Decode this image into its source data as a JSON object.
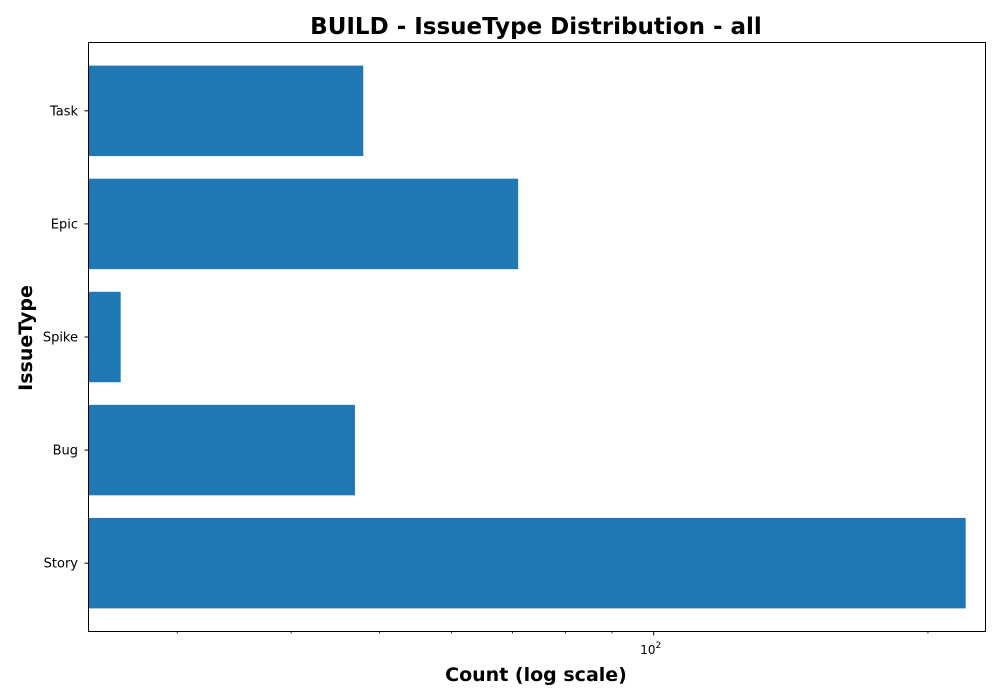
{
  "chart_data": {
    "type": "bar",
    "orientation": "horizontal",
    "title": "BUILD - IssueType Distribution - all",
    "xlabel": "Count (log scale)",
    "ylabel": "IssueType",
    "x_scale": "log",
    "xlim": [
      24,
      231
    ],
    "x_major_ticks": [
      {
        "value": 100,
        "base": "10",
        "exp": "2"
      }
    ],
    "x_minor_ticks": [
      30,
      40,
      50,
      60,
      70,
      80,
      90,
      200
    ],
    "categories": [
      "Story",
      "Bug",
      "Spike",
      "Epic",
      "Task"
    ],
    "values": [
      220,
      47,
      26,
      71,
      48
    ],
    "bar_color": "#1f77b4",
    "grid": false,
    "legend": "none"
  }
}
